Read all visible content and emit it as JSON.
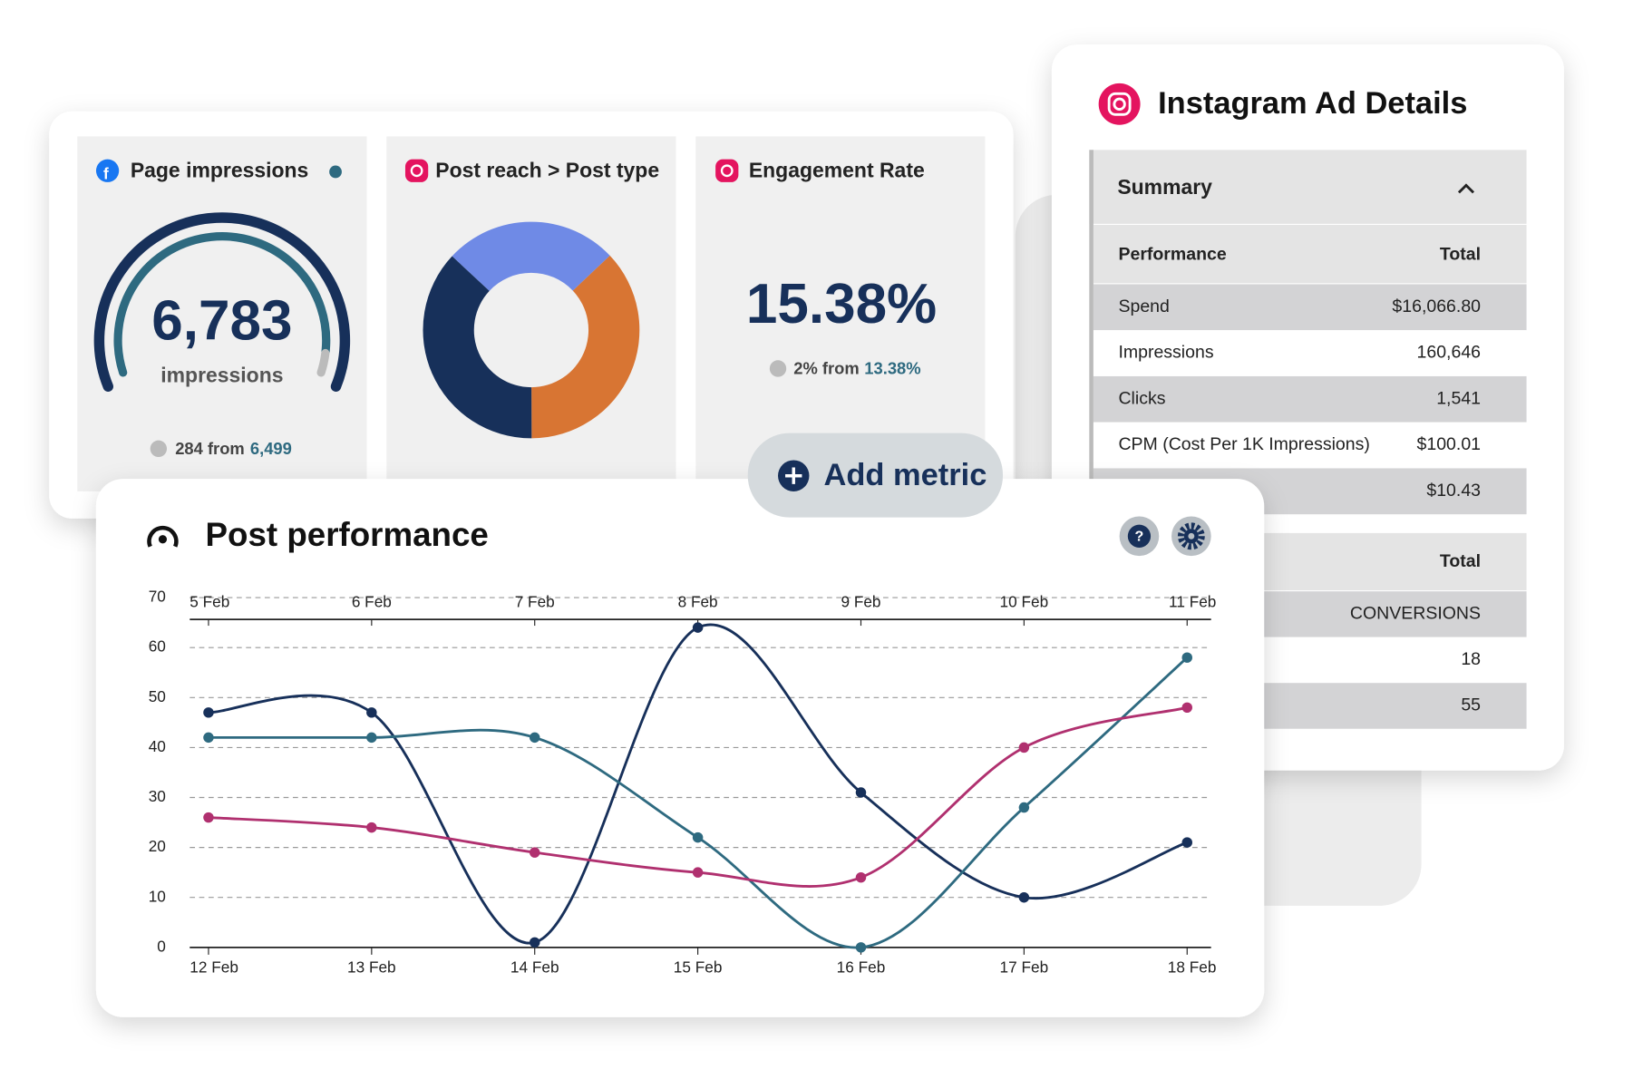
{
  "page_impressions": {
    "title": "Page impressions",
    "value": "6,783",
    "unit": "impressions",
    "change_text": "284 from",
    "previous": "6,499"
  },
  "post_reach": {
    "title": "Post reach > Post type",
    "chart_data": {
      "type": "pie",
      "values": [
        26,
        37,
        37
      ],
      "colors": [
        "#6f8ae6",
        "#d87533",
        "#17305a"
      ]
    }
  },
  "engagement": {
    "title": "Engagement Rate",
    "value": "15.38%",
    "change_text": "2% from",
    "previous": "13.38%"
  },
  "add_metric": "Add metric",
  "instagram": {
    "title": "Instagram Ad Details",
    "summary": "Summary",
    "columns": [
      "Performance",
      "Total"
    ],
    "rows": [
      {
        "label": "Spend",
        "value": "$16,066.80"
      },
      {
        "label": "Impressions",
        "value": "160,646"
      },
      {
        "label": "Clicks",
        "value": "1,541"
      },
      {
        "label": "CPM (Cost Per 1K Impressions)",
        "value": "$100.01"
      },
      {
        "value": "$10.43"
      }
    ],
    "section2": {
      "column": "Total",
      "rows": [
        "CONVERSIONS",
        "18",
        "55"
      ]
    }
  },
  "post_performance": {
    "title": "Post performance",
    "chart_data": {
      "type": "line",
      "categories": [
        "12 Feb",
        "13 Feb",
        "14 Feb",
        "15 Feb",
        "16 Feb",
        "17 Feb",
        "18 Feb"
      ],
      "top_categories": [
        "5 Feb",
        "6 Feb",
        "7 Feb",
        "8 Feb",
        "9 Feb",
        "10 Feb",
        "11 Feb"
      ],
      "series": [
        {
          "color": "#17305a",
          "values": [
            47,
            47,
            1,
            64,
            31,
            10,
            21
          ]
        },
        {
          "color": "#2e6a80",
          "values": [
            42,
            42,
            42,
            22,
            0,
            28,
            58
          ]
        },
        {
          "color": "#b0306f",
          "values": [
            26,
            24,
            19,
            15,
            14,
            40,
            48
          ]
        }
      ],
      "ylim": [
        0,
        70
      ],
      "yticks": [
        0,
        10,
        20,
        30,
        40,
        50,
        60,
        70
      ],
      "grid": true
    }
  }
}
